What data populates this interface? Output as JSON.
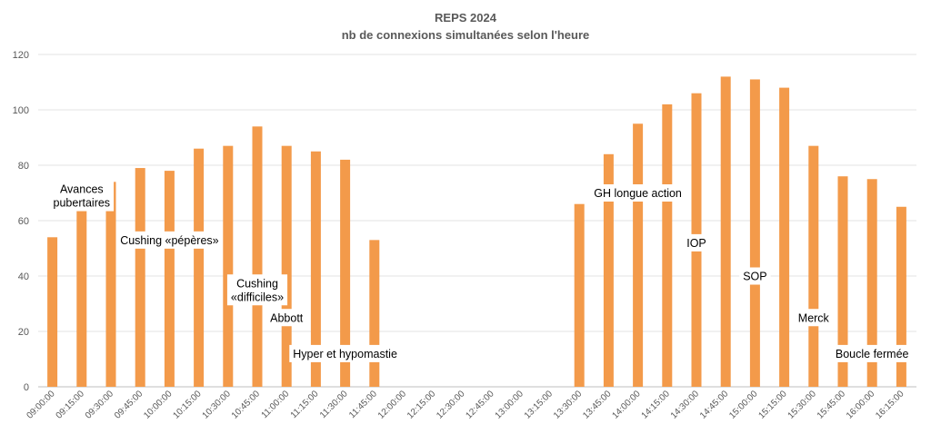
{
  "chart_data": {
    "type": "bar",
    "title": "REPS 2024",
    "subtitle": "nb de connexions simultanées selon l'heure",
    "xlabel": "",
    "ylabel": "",
    "ylim": [
      0,
      120
    ],
    "yticks": [
      "0",
      "20",
      "40",
      "60",
      "80",
      "100",
      "120"
    ],
    "grid": true,
    "legend": "none",
    "bar_color": "#f39a4a",
    "categories": [
      "09:00:00",
      "09:15:00",
      "09:30:00",
      "09:45:00",
      "10:00:00",
      "10:15:00",
      "10:30:00",
      "10:45:00",
      "11:00:00",
      "11:15:00",
      "11:30:00",
      "11:45:00",
      "12:00:00",
      "12:15:00",
      "12:30:00",
      "12:45:00",
      "13:00:00",
      "13:15:00",
      "13:30:00",
      "13:45:00",
      "14:00:00",
      "14:15:00",
      "14:30:00",
      "14:45:00",
      "15:00:00",
      "15:15:00",
      "15:30:00",
      "15:45:00",
      "16:00:00",
      "16:15:00"
    ],
    "values": [
      54,
      64,
      74,
      79,
      78,
      86,
      87,
      94,
      87,
      85,
      82,
      53,
      0,
      0,
      0,
      0,
      0,
      0,
      66,
      84,
      95,
      102,
      106,
      112,
      111,
      108,
      87,
      76,
      75,
      65
    ],
    "annotations": [
      {
        "lines": [
          "Avances",
          "pubertaires"
        ],
        "category": "09:15:00",
        "y": 69
      },
      {
        "lines": [
          "Cushing «pépères»"
        ],
        "category": "10:00:00",
        "y": 53
      },
      {
        "lines": [
          "Cushing",
          "«difficiles»"
        ],
        "category": "10:45:00",
        "y": 35
      },
      {
        "lines": [
          "Abbott"
        ],
        "category": "11:00:00",
        "y": 25
      },
      {
        "lines": [
          "Hyper et hypomastie"
        ],
        "category": "11:30:00",
        "y": 12
      },
      {
        "lines": [
          "GH longue action"
        ],
        "category": "14:00:00",
        "y": 70
      },
      {
        "lines": [
          "IOP"
        ],
        "category": "14:30:00",
        "y": 52
      },
      {
        "lines": [
          "SOP"
        ],
        "category": "15:00:00",
        "y": 40
      },
      {
        "lines": [
          "Merck"
        ],
        "category": "15:30:00",
        "y": 25
      },
      {
        "lines": [
          "Boucle fermée"
        ],
        "category": "16:00:00",
        "y": 12
      }
    ]
  }
}
